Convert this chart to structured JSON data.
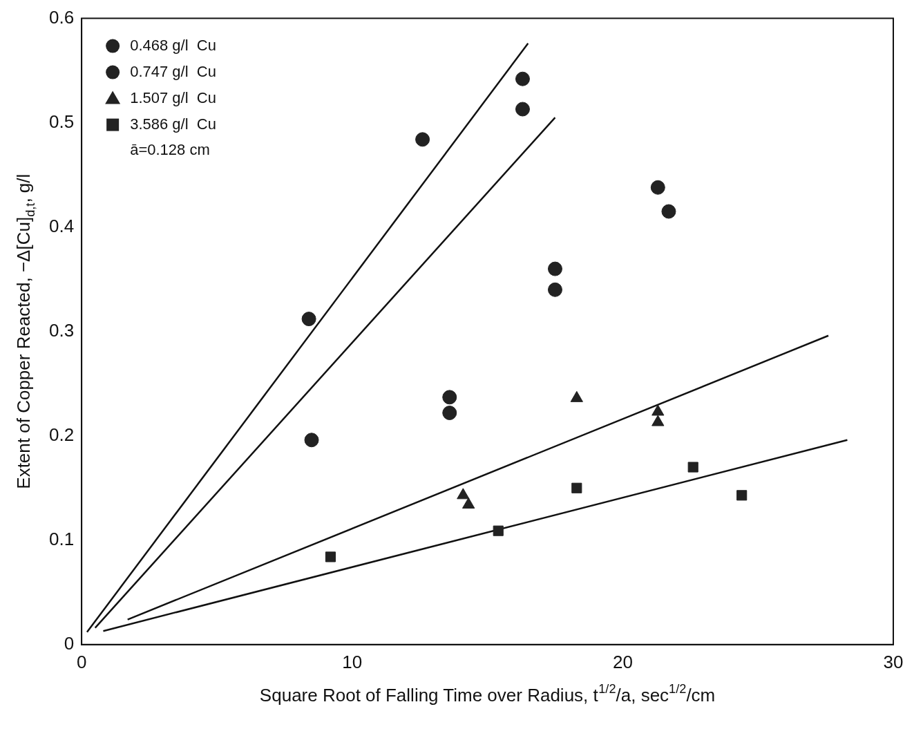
{
  "chart_data": {
    "type": "scatter",
    "xlabel": "Square Root of Falling Time over Radius, t$^{1/2}$/a, sec$^{1/2}$/cm",
    "ylabel": "Extent of Copper Reacted, −Δ[Cu]$_{d,t}$, g/l",
    "xlim": [
      0,
      30
    ],
    "ylim": [
      0,
      0.6
    ],
    "xticks": [
      0,
      10,
      20,
      30
    ],
    "yticks": [
      0,
      0.1,
      0.2,
      0.3,
      0.4,
      0.5,
      0.6
    ],
    "grid": false,
    "legend": "top left",
    "annotations": [
      "ā=0.128 cm"
    ],
    "series": [
      {
        "name": "0.468 g/l  Cu",
        "color": "#222222",
        "marker": "circle",
        "x": [
          8.4,
          12.6,
          16.3,
          16.3
        ],
        "values": [
          0.312,
          0.484,
          0.542,
          0.513
        ]
      },
      {
        "name": "0.747 g/l  Cu",
        "color": "#222222",
        "marker": "circle",
        "x": [
          8.5,
          13.6,
          13.6,
          17.5,
          17.5,
          21.3,
          21.7
        ],
        "values": [
          0.196,
          0.237,
          0.222,
          0.36,
          0.34,
          0.438,
          0.415
        ]
      },
      {
        "name": "1.507 g/l  Cu",
        "color": "#222222",
        "marker": "triangle",
        "x": [
          14.1,
          14.3,
          18.3,
          21.3,
          21.3
        ],
        "values": [
          0.143,
          0.134,
          0.236,
          0.223,
          0.213
        ]
      },
      {
        "name": "3.586 g/l  Cu",
        "color": "#222222",
        "marker": "square",
        "x": [
          9.2,
          15.4,
          18.3,
          22.6,
          24.4
        ],
        "values": [
          0.084,
          0.109,
          0.15,
          0.17,
          0.143
        ]
      },
      {
        "type": "line",
        "color": "#111111",
        "marker": "none",
        "x": [
          0.2,
          16.5
        ],
        "values": [
          0.012,
          0.576
        ]
      },
      {
        "type": "line",
        "color": "#111111",
        "marker": "none",
        "x": [
          0.5,
          17.5
        ],
        "values": [
          0.016,
          0.505
        ]
      },
      {
        "type": "line",
        "color": "#111111",
        "marker": "none",
        "x": [
          1.7,
          27.6
        ],
        "values": [
          0.024,
          0.296
        ]
      },
      {
        "type": "line",
        "color": "#111111",
        "marker": "none",
        "x": [
          0.8,
          28.3
        ],
        "values": [
          0.013,
          0.196
        ]
      }
    ]
  }
}
